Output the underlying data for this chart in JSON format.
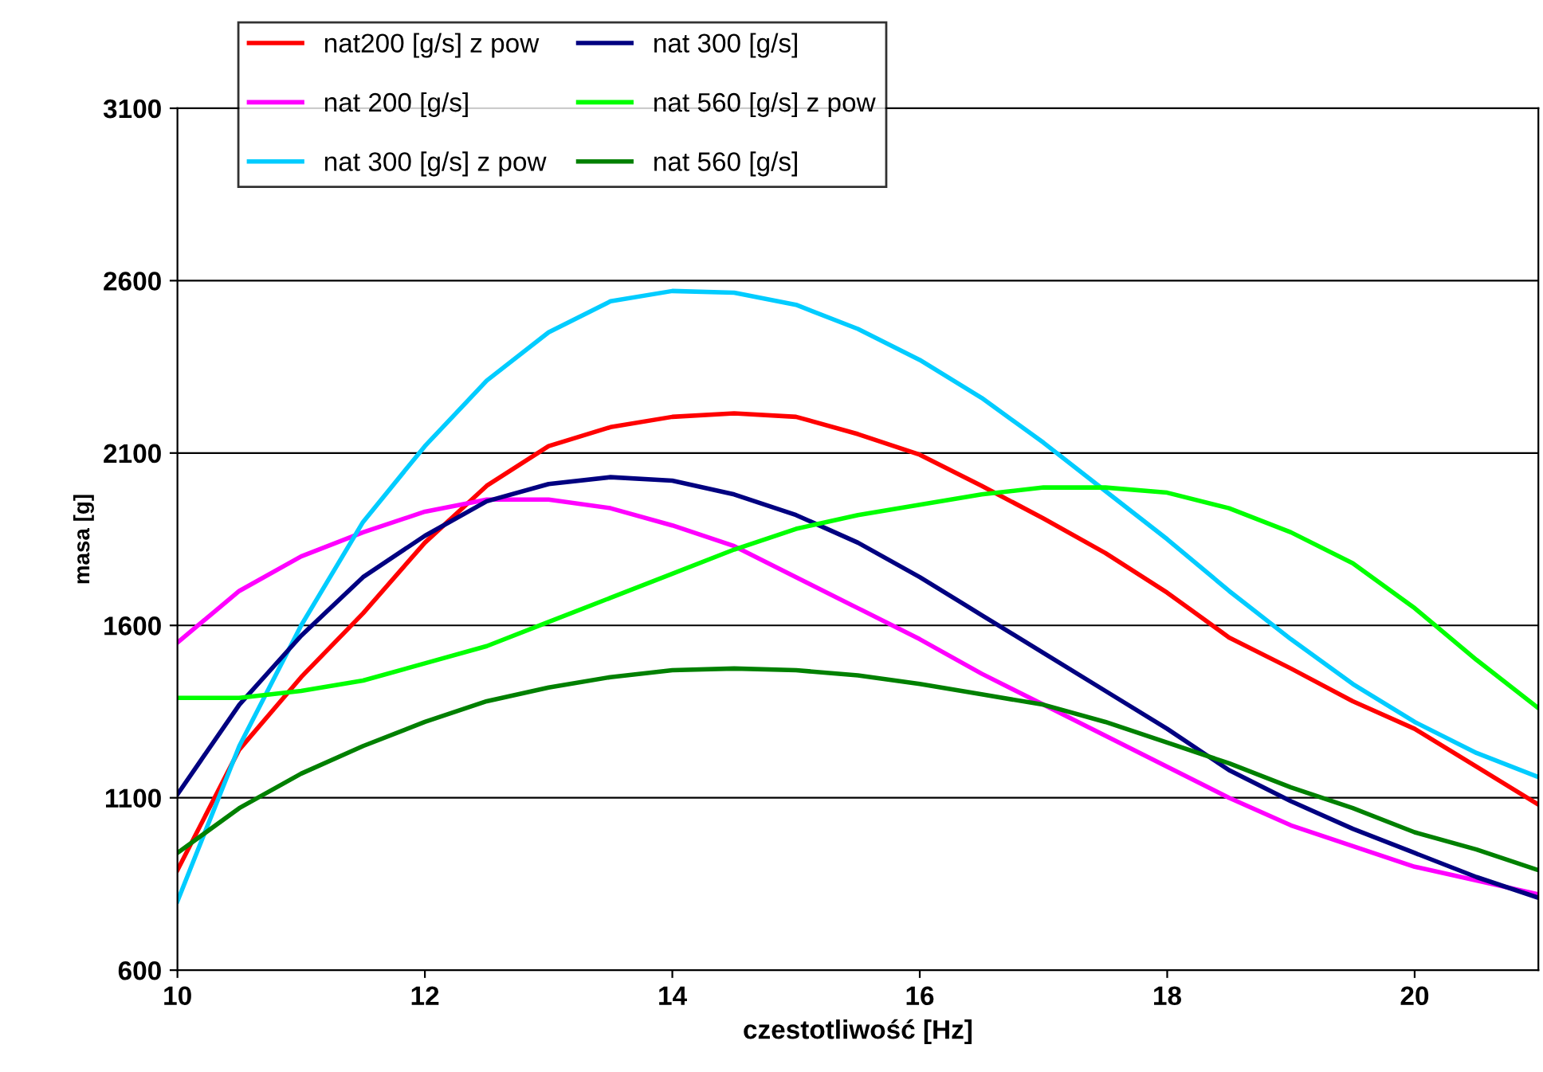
{
  "chart_data": {
    "type": "line",
    "xlabel": "czestotliwość [Hz]",
    "ylabel": "masa [g]",
    "x": [
      10,
      10.5,
      11,
      11.5,
      12,
      12.5,
      13,
      13.5,
      14,
      14.5,
      15,
      15.5,
      16,
      16.5,
      17,
      17.5,
      18,
      18.5,
      19,
      19.5,
      20,
      20.5,
      21
    ],
    "xlim": [
      10,
      21
    ],
    "xticks": [
      10,
      12,
      14,
      16,
      18,
      20
    ],
    "ylim": [
      600,
      3100
    ],
    "yticks": [
      600,
      1100,
      1600,
      2100,
      2600,
      3100
    ],
    "grid": "y",
    "legend": "top",
    "marker": "none",
    "line_style": "solid",
    "series": [
      {
        "name": "nat200 [g/s] z pow",
        "color": "#ff0000",
        "values": [
          890,
          1240,
          1450,
          1635,
          1840,
          2005,
          2120,
          2175,
          2205,
          2215,
          2205,
          2155,
          2095,
          2005,
          1910,
          1810,
          1695,
          1565,
          1475,
          1380,
          1300,
          1190,
          1080
        ]
      },
      {
        "name": "nat 200 [g/s]",
        "color": "#ff00ff",
        "values": [
          1550,
          1700,
          1800,
          1870,
          1930,
          1965,
          1965,
          1940,
          1890,
          1830,
          1740,
          1650,
          1560,
          1460,
          1370,
          1280,
          1190,
          1100,
          1020,
          960,
          900,
          860,
          820
        ]
      },
      {
        "name": "nat 300 [g/s] z pow",
        "color": "#00ccff",
        "values": [
          800,
          1250,
          1600,
          1900,
          2120,
          2310,
          2450,
          2540,
          2570,
          2565,
          2530,
          2460,
          2370,
          2260,
          2130,
          1990,
          1850,
          1700,
          1560,
          1430,
          1320,
          1230,
          1160
        ]
      },
      {
        "name": "nat 300 [g/s]",
        "color": "#000080",
        "values": [
          1110,
          1370,
          1570,
          1740,
          1860,
          1960,
          2010,
          2030,
          2020,
          1980,
          1920,
          1840,
          1740,
          1630,
          1520,
          1410,
          1300,
          1180,
          1090,
          1010,
          940,
          870,
          810
        ]
      },
      {
        "name": "nat 560 [g/s] z pow",
        "color": "#00ff00",
        "values": [
          1390,
          1390,
          1410,
          1440,
          1490,
          1540,
          1610,
          1680,
          1750,
          1820,
          1880,
          1920,
          1950,
          1980,
          2000,
          2000,
          1985,
          1940,
          1870,
          1780,
          1650,
          1500,
          1360
        ]
      },
      {
        "name": "nat 560 [g/s]",
        "color": "#008000",
        "values": [
          940,
          1070,
          1170,
          1250,
          1320,
          1380,
          1420,
          1450,
          1470,
          1475,
          1470,
          1455,
          1430,
          1400,
          1370,
          1320,
          1260,
          1200,
          1130,
          1070,
          1000,
          950,
          890
        ]
      }
    ]
  }
}
